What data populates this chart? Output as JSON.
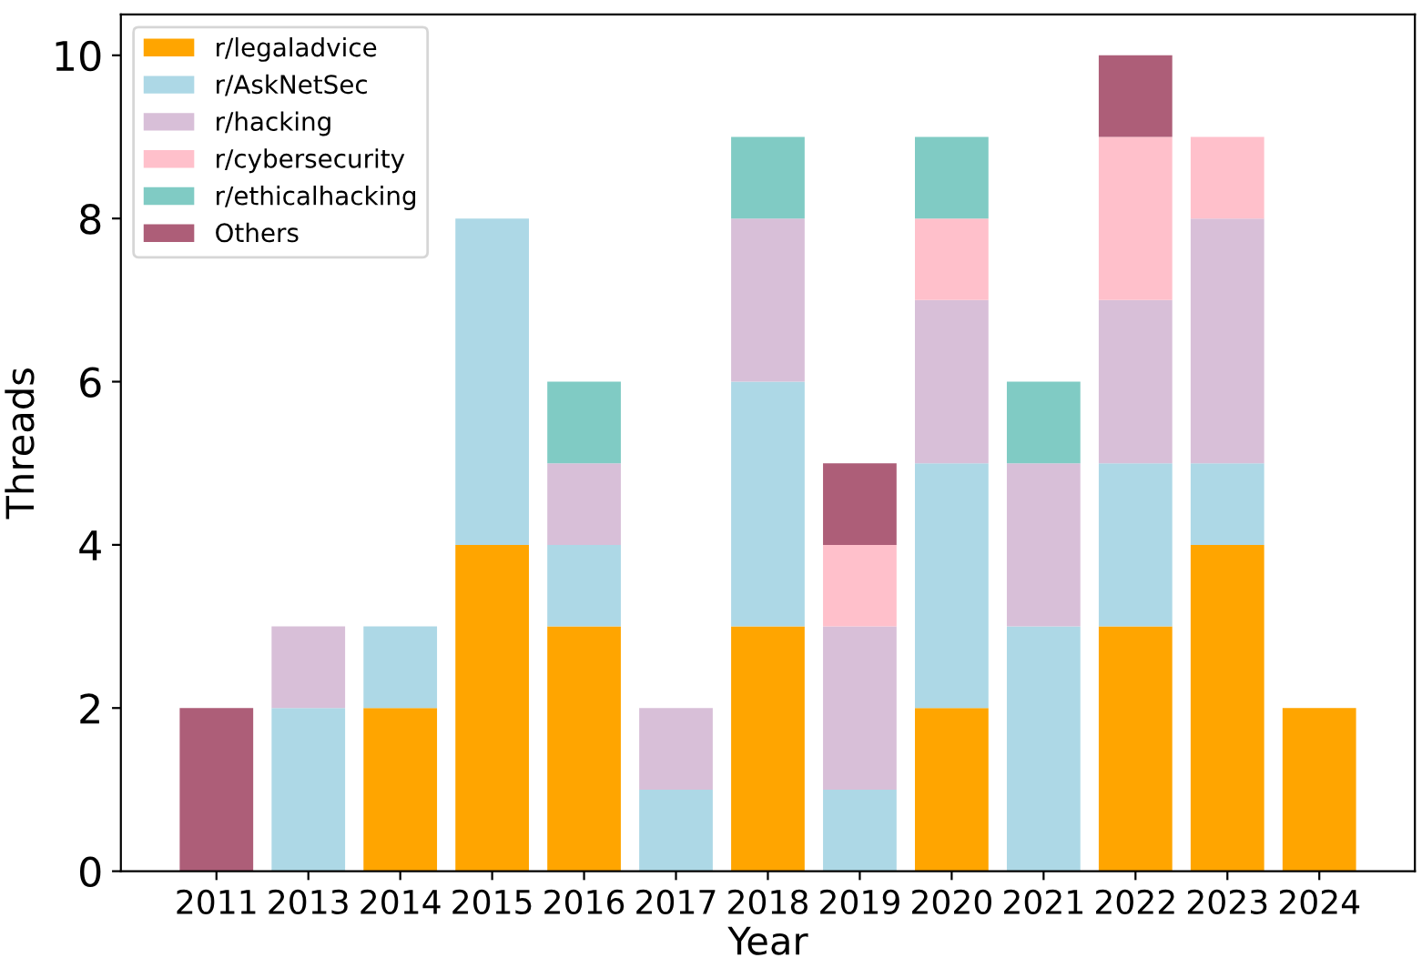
{
  "chart_data": {
    "type": "bar",
    "stacked": true,
    "xlabel": "Year",
    "ylabel": "Threads",
    "categories": [
      "2011",
      "2013",
      "2014",
      "2015",
      "2016",
      "2017",
      "2018",
      "2019",
      "2020",
      "2021",
      "2022",
      "2023",
      "2024"
    ],
    "series": [
      {
        "name": "r/legaladvice",
        "color": "#ffa500",
        "values": [
          0,
          0,
          2,
          4,
          3,
          0,
          3,
          0,
          2,
          0,
          3,
          4,
          2
        ]
      },
      {
        "name": "r/AskNetSec",
        "color": "#add8e6",
        "values": [
          0,
          2,
          1,
          4,
          1,
          1,
          3,
          1,
          3,
          3,
          2,
          1,
          0
        ]
      },
      {
        "name": "r/hacking",
        "color": "#d8bfd8",
        "values": [
          0,
          1,
          0,
          0,
          1,
          1,
          2,
          2,
          2,
          2,
          2,
          3,
          0
        ]
      },
      {
        "name": "r/cybersecurity",
        "color": "#ffc0cb",
        "values": [
          0,
          0,
          0,
          0,
          0,
          0,
          0,
          1,
          1,
          0,
          2,
          1,
          0
        ]
      },
      {
        "name": "r/ethicalhacking",
        "color": "#80cbc4",
        "values": [
          0,
          0,
          0,
          0,
          1,
          0,
          1,
          0,
          1,
          1,
          0,
          0,
          0
        ]
      },
      {
        "name": "Others",
        "color": "#ad5e78",
        "values": [
          2,
          0,
          0,
          0,
          0,
          0,
          0,
          1,
          0,
          0,
          1,
          0,
          0
        ]
      }
    ],
    "ylim": [
      0,
      10.5
    ],
    "yticks": [
      0,
      2,
      4,
      6,
      8,
      10
    ],
    "grid": false,
    "legend": "top left"
  }
}
